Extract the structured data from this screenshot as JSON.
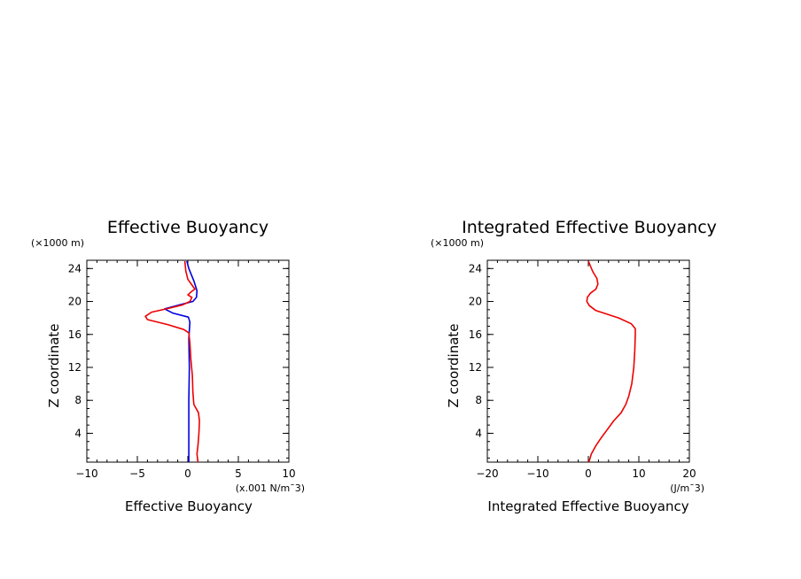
{
  "chart_data": [
    {
      "type": "line",
      "title": "Effective Buoyancy",
      "xlabel": "Effective Buoyancy",
      "ylabel": "Z coordinate",
      "y_scale_note": "(×1000 m)",
      "x_unit_note": "(x.001 N/m¯3)",
      "xlim": [
        -10,
        10
      ],
      "ylim": [
        0.5,
        25
      ],
      "x_ticks": [
        {
          "value": -10,
          "label": "−10"
        },
        {
          "value": -5,
          "label": "−5"
        },
        {
          "value": 0,
          "label": "0"
        },
        {
          "value": 5,
          "label": "5"
        },
        {
          "value": 10,
          "label": "10"
        }
      ],
      "y_ticks": [
        {
          "value": 4,
          "label": "4"
        },
        {
          "value": 8,
          "label": "8"
        },
        {
          "value": 12,
          "label": "12"
        },
        {
          "value": 16,
          "label": "16"
        },
        {
          "value": 20,
          "label": "20"
        },
        {
          "value": 24,
          "label": "24"
        }
      ],
      "x_minor_step": 1,
      "y_minor_step": 1,
      "series": [
        {
          "color": "#0000dd",
          "points": [
            [
              0.1,
              0.5
            ],
            [
              0.1,
              4
            ],
            [
              0.1,
              8
            ],
            [
              0.15,
              12
            ],
            [
              0.1,
              15.5
            ],
            [
              0.2,
              17.5
            ],
            [
              0.05,
              18.1
            ],
            [
              -1.5,
              18.6
            ],
            [
              -2.3,
              19.1
            ],
            [
              -0.8,
              19.6
            ],
            [
              0.5,
              20
            ],
            [
              0.85,
              20.5
            ],
            [
              0.9,
              21.3
            ],
            [
              0.6,
              22.5
            ],
            [
              0.1,
              24
            ],
            [
              -0.1,
              24.9
            ]
          ]
        },
        {
          "color": "#ee0000",
          "points": [
            [
              1.0,
              0.5
            ],
            [
              0.9,
              1.5
            ],
            [
              1.0,
              2.5
            ],
            [
              1.1,
              4
            ],
            [
              1.15,
              5.5
            ],
            [
              1.05,
              6.5
            ],
            [
              0.6,
              7.5
            ],
            [
              0.5,
              9
            ],
            [
              0.45,
              11
            ],
            [
              0.3,
              13
            ],
            [
              0.2,
              15
            ],
            [
              0.1,
              16.2
            ],
            [
              -0.4,
              16.6
            ],
            [
              -2.0,
              17.2
            ],
            [
              -4.0,
              17.8
            ],
            [
              -4.2,
              18.2
            ],
            [
              -3.6,
              18.7
            ],
            [
              -1.8,
              19.2
            ],
            [
              -0.5,
              19.6
            ],
            [
              0.2,
              20.0
            ],
            [
              0.4,
              20.5
            ],
            [
              0.0,
              20.8
            ],
            [
              0.35,
              21.2
            ],
            [
              0.7,
              21.5
            ],
            [
              0.4,
              22.0
            ],
            [
              0.0,
              22.7
            ],
            [
              -0.2,
              23.7
            ],
            [
              -0.3,
              24.9
            ]
          ]
        }
      ]
    },
    {
      "type": "line",
      "title": "Integrated Effective Buoyancy",
      "xlabel": "Integrated Effective Buoyancy",
      "ylabel": "Z coordinate",
      "y_scale_note": "(×1000 m)",
      "x_unit_note": "(J/m¯3)",
      "xlim": [
        -20,
        20
      ],
      "ylim": [
        0.5,
        25
      ],
      "x_ticks": [
        {
          "value": -20,
          "label": "−20"
        },
        {
          "value": -10,
          "label": "−10"
        },
        {
          "value": 0,
          "label": "0"
        },
        {
          "value": 10,
          "label": "10"
        },
        {
          "value": 20,
          "label": "20"
        }
      ],
      "y_ticks": [
        {
          "value": 4,
          "label": "4"
        },
        {
          "value": 8,
          "label": "8"
        },
        {
          "value": 12,
          "label": "12"
        },
        {
          "value": 16,
          "label": "16"
        },
        {
          "value": 20,
          "label": "20"
        },
        {
          "value": 24,
          "label": "24"
        }
      ],
      "x_minor_step": 2,
      "y_minor_step": 1,
      "series": [
        {
          "color": "#ee0000",
          "points": [
            [
              0.1,
              0.5
            ],
            [
              0.6,
              1.5
            ],
            [
              1.5,
              2.5
            ],
            [
              2.6,
              3.5
            ],
            [
              3.8,
              4.5
            ],
            [
              5.0,
              5.5
            ],
            [
              6.5,
              6.5
            ],
            [
              7.4,
              7.5
            ],
            [
              8.0,
              8.5
            ],
            [
              8.6,
              10
            ],
            [
              9.0,
              12
            ],
            [
              9.2,
              14
            ],
            [
              9.3,
              16
            ],
            [
              9.3,
              16.7
            ],
            [
              8.5,
              17.3
            ],
            [
              6.0,
              18.0
            ],
            [
              3.5,
              18.5
            ],
            [
              1.5,
              18.9
            ],
            [
              0.2,
              19.5
            ],
            [
              -0.3,
              20.0
            ],
            [
              -0.2,
              20.5
            ],
            [
              0.4,
              21.0
            ],
            [
              1.5,
              21.5
            ],
            [
              1.9,
              22.1
            ],
            [
              1.7,
              22.8
            ],
            [
              0.9,
              23.6
            ],
            [
              0.0,
              24.9
            ]
          ]
        }
      ]
    }
  ]
}
